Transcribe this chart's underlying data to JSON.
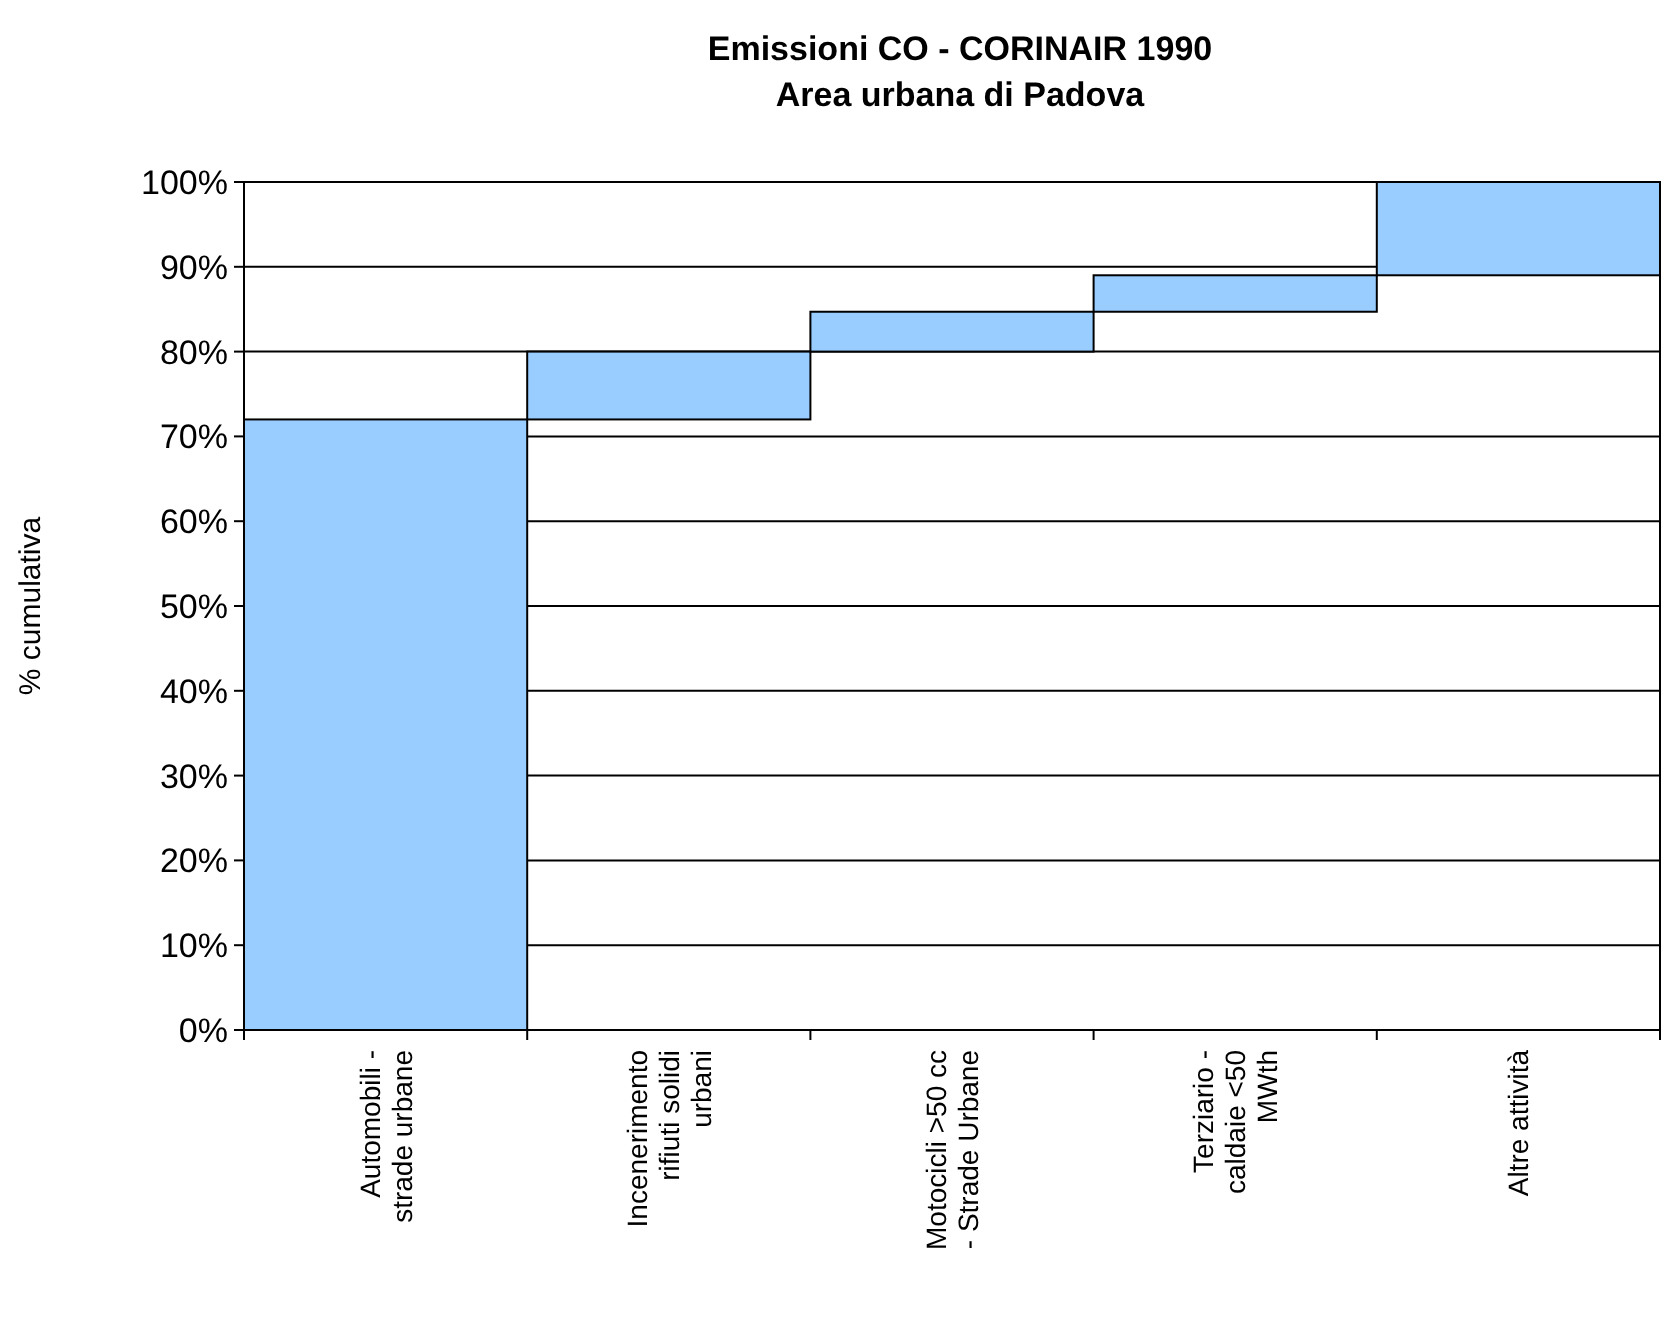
{
  "chart_data": {
    "type": "bar",
    "title": "Emissioni CO - CORINAIR 1990\nArea urbana di Padova",
    "ylabel": "% cumulativa",
    "categories": [
      "Automobili -\nstrade urbane",
      "Incenerimento\nrifiuti solidi\nurbani",
      "Motocicli >50 cc\n- Strade Urbane",
      "Terziario -\ncaldaie <50\nMWth",
      "Altre attività"
    ],
    "base": [
      0,
      72,
      80,
      84.7,
      89
    ],
    "values": [
      72,
      8,
      4.7,
      4.3,
      11
    ],
    "color": "#99ccff",
    "ylim": [
      0,
      100
    ],
    "yticks": [
      {
        "value": 0,
        "label": "0%"
      },
      {
        "value": 10,
        "label": "10%"
      },
      {
        "value": 20,
        "label": "20%"
      },
      {
        "value": 30,
        "label": "30%"
      },
      {
        "value": 40,
        "label": "40%"
      },
      {
        "value": 50,
        "label": "50%"
      },
      {
        "value": 60,
        "label": "60%"
      },
      {
        "value": 70,
        "label": "70%"
      },
      {
        "value": 80,
        "label": "80%"
      },
      {
        "value": 90,
        "label": "90%"
      },
      {
        "value": 100,
        "label": "100%"
      }
    ],
    "grid": "y"
  }
}
